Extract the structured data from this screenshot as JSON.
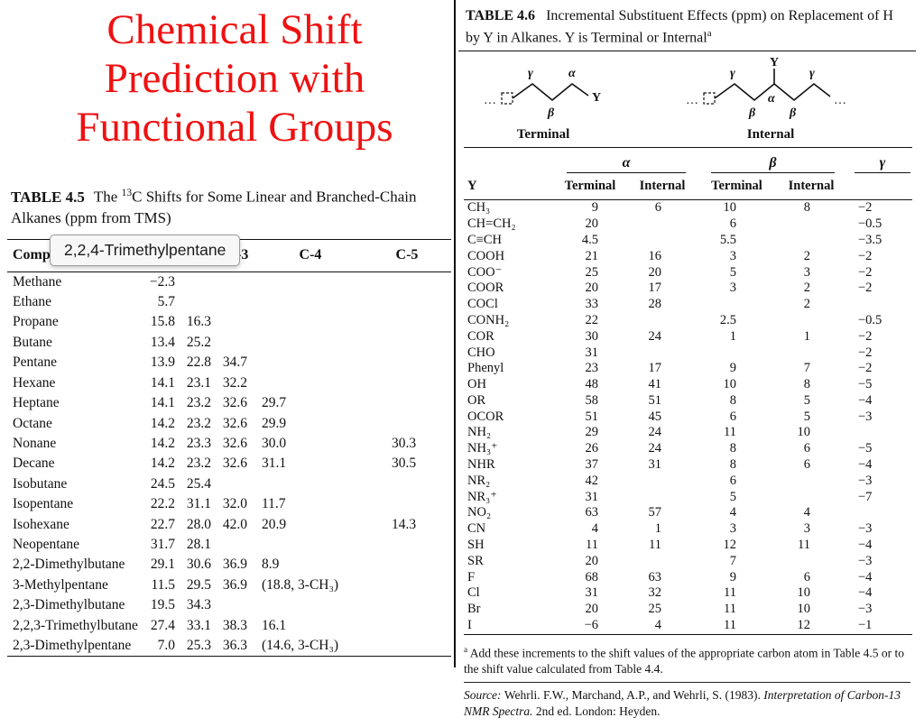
{
  "title": {
    "lines": [
      "Chemical Shift",
      "Prediction with",
      "Functional Groups"
    ]
  },
  "tooltip": {
    "text": "2,2,4-Trimethylpentane"
  },
  "table45": {
    "label": "TABLE 4.5",
    "caption_pre": "The ",
    "caption_sup": "13",
    "caption_post": "C Shifts for Some Linear and Branched-Chain Alkanes (ppm from TMS)",
    "headers": [
      "Compound",
      "C-1",
      "C-2",
      "C-3",
      "C-4",
      "C-5"
    ],
    "rows": [
      [
        "Methane",
        "−2.3",
        "",
        "",
        "",
        ""
      ],
      [
        "Ethane",
        "5.7",
        "",
        "",
        "",
        ""
      ],
      [
        "Propane",
        "15.8",
        "16.3",
        "",
        "",
        ""
      ],
      [
        "Butane",
        "13.4",
        "25.2",
        "",
        "",
        ""
      ],
      [
        "Pentane",
        "13.9",
        "22.8",
        "34.7",
        "",
        ""
      ],
      [
        "Hexane",
        "14.1",
        "23.1",
        "32.2",
        "",
        ""
      ],
      [
        "Heptane",
        "14.1",
        "23.2",
        "32.6",
        "29.7",
        ""
      ],
      [
        "Octane",
        "14.2",
        "23.2",
        "32.6",
        "29.9",
        ""
      ],
      [
        "Nonane",
        "14.2",
        "23.3",
        "32.6",
        "30.0",
        "30.3"
      ],
      [
        "Decane",
        "14.2",
        "23.2",
        "32.6",
        "31.1",
        "30.5"
      ],
      [
        "Isobutane",
        "24.5",
        "25.4",
        "",
        "",
        ""
      ],
      [
        "Isopentane",
        "22.2",
        "31.1",
        "32.0",
        "11.7",
        ""
      ],
      [
        "Isohexane",
        "22.7",
        "28.0",
        "42.0",
        "20.9",
        "14.3"
      ],
      [
        "Neopentane",
        "31.7",
        "28.1",
        "",
        "",
        ""
      ],
      [
        "2,2-Dimethylbutane",
        "29.1",
        "30.6",
        "36.9",
        "8.9",
        ""
      ],
      [
        "3-Methylpentane",
        "11.5",
        "29.5",
        "36.9",
        "(18.8, 3-CH₃)",
        ""
      ],
      [
        "2,3-Dimethylbutane",
        "19.5",
        "34.3",
        "",
        "",
        ""
      ],
      [
        "2,2,3-Trimethylbutane",
        "27.4",
        "33.1",
        "38.3",
        "16.1",
        ""
      ],
      [
        "2,3-Dimethylpentane",
        "7.0",
        "25.3",
        "36.3",
        "(14.6, 3-CH₃)",
        ""
      ]
    ]
  },
  "table46": {
    "label": "TABLE 4.6",
    "caption": "Incremental Substituent Effects (ppm) on Replacement of H by Y in Alkanes. Y is Terminal or Internal",
    "caption_sup": "a",
    "diagram": {
      "terminal_label": "Terminal",
      "internal_label": "Internal",
      "alpha": "α",
      "beta": "β",
      "gamma": "γ",
      "y": "Y",
      "ellipsis": "…"
    },
    "group_headers": [
      "α",
      "β",
      "γ"
    ],
    "col_headers": [
      "Y",
      "Terminal",
      "Internal",
      "Terminal",
      "Internal"
    ],
    "rows": [
      [
        "CH₃",
        "9",
        "6",
        "10",
        "8",
        "−2"
      ],
      [
        "CH=CH₂",
        "20",
        "",
        "6",
        "",
        "−0.5"
      ],
      [
        "C≡CH",
        "4.5",
        "",
        "5.5",
        "",
        "−3.5"
      ],
      [
        "COOH",
        "21",
        "16",
        "3",
        "2",
        "−2"
      ],
      [
        "COO⁻",
        "25",
        "20",
        "5",
        "3",
        "−2"
      ],
      [
        "COOR",
        "20",
        "17",
        "3",
        "2",
        "−2"
      ],
      [
        "COCl",
        "33",
        "28",
        "",
        "2",
        ""
      ],
      [
        "CONH₂",
        "22",
        "",
        "2.5",
        "",
        "−0.5"
      ],
      [
        "COR",
        "30",
        "24",
        "1",
        "1",
        "−2"
      ],
      [
        "CHO",
        "31",
        "",
        "",
        "",
        "−2"
      ],
      [
        "Phenyl",
        "23",
        "17",
        "9",
        "7",
        "−2"
      ],
      [
        "OH",
        "48",
        "41",
        "10",
        "8",
        "−5"
      ],
      [
        "OR",
        "58",
        "51",
        "8",
        "5",
        "−4"
      ],
      [
        "OCOR",
        "51",
        "45",
        "6",
        "5",
        "−3"
      ],
      [
        "NH₂",
        "29",
        "24",
        "11",
        "10",
        ""
      ],
      [
        "NH₃⁺",
        "26",
        "24",
        "8",
        "6",
        "−5"
      ],
      [
        "NHR",
        "37",
        "31",
        "8",
        "6",
        "−4"
      ],
      [
        "NR₂",
        "42",
        "",
        "6",
        "",
        "−3"
      ],
      [
        "NR₃⁺",
        "31",
        "",
        "5",
        "",
        "−7"
      ],
      [
        "NO₂",
        "63",
        "57",
        "4",
        "4",
        ""
      ],
      [
        "CN",
        "4",
        "1",
        "3",
        "3",
        "−3"
      ],
      [
        "SH",
        "11",
        "11",
        "12",
        "11",
        "−4"
      ],
      [
        "SR",
        "20",
        "",
        "7",
        "",
        "−3"
      ],
      [
        "F",
        "68",
        "63",
        "9",
        "6",
        "−4"
      ],
      [
        "Cl",
        "31",
        "32",
        "11",
        "10",
        "−4"
      ],
      [
        "Br",
        "20",
        "25",
        "11",
        "10",
        "−3"
      ],
      [
        "I",
        "−6",
        "4",
        "11",
        "12",
        "−1"
      ]
    ],
    "footnote_marker": "a",
    "footnote": "Add these increments to the shift values of the appropriate carbon atom in Table 4.5 or to the shift value calculated from Table 4.4.",
    "source_prefix": "Source: ",
    "source_authors": "Wehrli. F.W., Marchand, A.P., and Wehrli, S. (1983). ",
    "source_title": "Interpretation of Carbon-13 NMR Spectra.",
    "source_suffix": " 2nd ed. London: Heyden."
  }
}
